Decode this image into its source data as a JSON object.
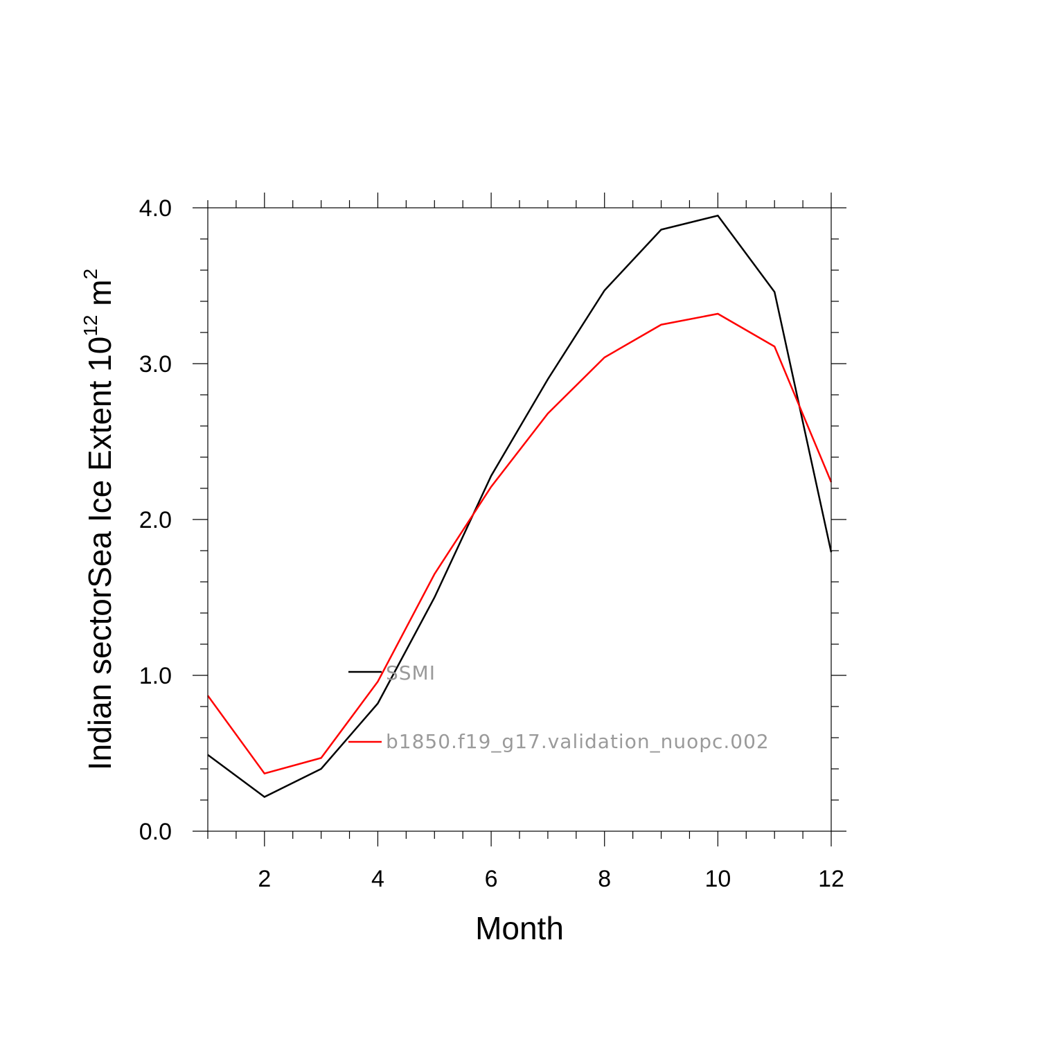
{
  "chart_data": {
    "type": "line",
    "title": "",
    "xlabel": "Month",
    "ylabel": "Indian sectorSea Ice Extent 10",
    "ylabel_exponent": "12",
    "ylabel_unit": " m",
    "ylabel_unit_exponent": "2",
    "xlim": [
      1,
      12
    ],
    "ylim": [
      0,
      4
    ],
    "x_ticks": [
      2,
      4,
      6,
      8,
      10,
      12
    ],
    "x_tick_labels": [
      "2",
      "4",
      "6",
      "8",
      "10",
      "12"
    ],
    "y_ticks": [
      0,
      1,
      2,
      3,
      4
    ],
    "y_tick_labels": [
      "0.0",
      "1.0",
      "2.0",
      "3.0",
      "4.0"
    ],
    "grid": false,
    "legend_position": "center-left",
    "x": [
      1,
      2,
      3,
      4,
      5,
      6,
      7,
      8,
      9,
      10,
      11,
      12
    ],
    "series": [
      {
        "name": "SSMI",
        "color": "#000000",
        "values": [
          0.49,
          0.22,
          0.4,
          0.82,
          1.5,
          2.28,
          2.9,
          3.47,
          3.86,
          3.95,
          3.46,
          1.79
        ]
      },
      {
        "name": "b1850.f19_g17.validation_nuopc.002",
        "color": "#ff0000",
        "values": [
          0.87,
          0.37,
          0.47,
          0.96,
          1.65,
          2.21,
          2.68,
          3.04,
          3.25,
          3.32,
          3.11,
          2.24
        ]
      }
    ]
  }
}
